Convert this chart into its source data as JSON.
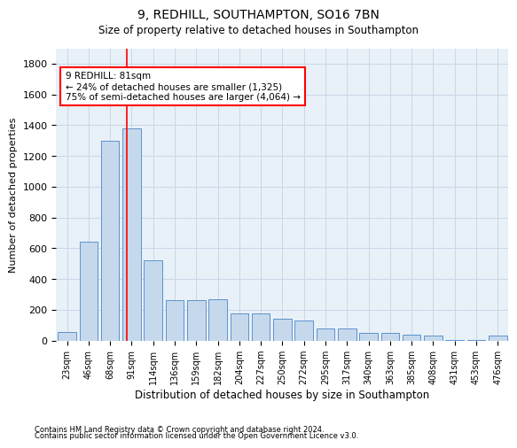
{
  "title1": "9, REDHILL, SOUTHAMPTON, SO16 7BN",
  "title2": "Size of property relative to detached houses in Southampton",
  "xlabel": "Distribution of detached houses by size in Southampton",
  "ylabel": "Number of detached properties",
  "categories": [
    "23sqm",
    "46sqm",
    "68sqm",
    "91sqm",
    "114sqm",
    "136sqm",
    "159sqm",
    "182sqm",
    "204sqm",
    "227sqm",
    "250sqm",
    "272sqm",
    "295sqm",
    "317sqm",
    "340sqm",
    "363sqm",
    "385sqm",
    "408sqm",
    "431sqm",
    "453sqm",
    "476sqm"
  ],
  "values": [
    55,
    640,
    1300,
    1380,
    520,
    260,
    260,
    265,
    175,
    175,
    140,
    130,
    80,
    80,
    50,
    50,
    40,
    30,
    5,
    5,
    30
  ],
  "bar_color": "#c6d9ec",
  "bar_edge_color": "#4a86c8",
  "grid_color": "#c8d8e8",
  "property_line_x": 2.77,
  "annotation_text": "9 REDHILL: 81sqm\n← 24% of detached houses are smaller (1,325)\n75% of semi-detached houses are larger (4,064) →",
  "annotation_box_color": "white",
  "annotation_box_edge": "red",
  "footer1": "Contains HM Land Registry data © Crown copyright and database right 2024.",
  "footer2": "Contains public sector information licensed under the Open Government Licence v3.0.",
  "ylim": [
    0,
    1900
  ],
  "yticks": [
    0,
    200,
    400,
    600,
    800,
    1000,
    1200,
    1400,
    1600,
    1800
  ],
  "plot_bg": "#e8f0f8",
  "fig_bg": "#ffffff"
}
